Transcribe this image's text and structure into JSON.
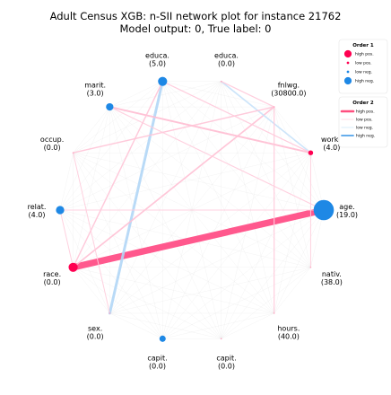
{
  "chart_data": {
    "type": "network",
    "title": "Adult Census XGB: n-SII network plot for instance 21762",
    "subtitle": "Model output: 0, True label: 0",
    "colors": {
      "high_pos": "#ff0051",
      "low_pos": "#ffc2d1",
      "low_neg": "#c4e2f7",
      "high_neg": "#1e88e5",
      "background_edge": "#dddddd"
    },
    "features": [
      {
        "id": "age",
        "name": "age.",
        "value": "(19.0)",
        "order1": -0.3
      },
      {
        "id": "workc",
        "name": "workc",
        "value": "(4.0)",
        "order1": 0.01
      },
      {
        "id": "fnlwg",
        "name": "fnlwg.",
        "value": "(30800.0)",
        "order1": 0.0
      },
      {
        "id": "educa1",
        "name": "educa.",
        "value": "(0.0)",
        "order1": 0.0
      },
      {
        "id": "educa2",
        "name": "educa.",
        "value": "(5.0)",
        "order1": -0.05
      },
      {
        "id": "marit",
        "name": "marit.",
        "value": "(3.0)",
        "order1": -0.03
      },
      {
        "id": "occup",
        "name": "occup.",
        "value": "(0.0)",
        "order1": 0.0
      },
      {
        "id": "relat",
        "name": "relat.",
        "value": "(4.0)",
        "order1": -0.04
      },
      {
        "id": "race",
        "name": "race.",
        "value": "(0.0)",
        "order1": 0.05
      },
      {
        "id": "sex",
        "name": "sex.",
        "value": "(0.0)",
        "order1": 0.0
      },
      {
        "id": "capit1",
        "name": "capit.",
        "value": "(0.0)",
        "order1": -0.02
      },
      {
        "id": "capit2",
        "name": "capit.",
        "value": "(0.0)",
        "order1": 0.0
      },
      {
        "id": "hours",
        "name": "hours.",
        "value": "(40.0)",
        "order1": 0.0
      },
      {
        "id": "nativ",
        "name": "nativ.",
        "value": "(38.0)",
        "order1": 0.0
      }
    ],
    "interactions": [
      {
        "source": "race",
        "target": "age",
        "value": 0.3
      },
      {
        "source": "educa2",
        "target": "sex",
        "value": -0.1
      },
      {
        "source": "marit",
        "target": "workc",
        "value": 0.05
      },
      {
        "source": "race",
        "target": "fnlwg",
        "value": 0.04
      },
      {
        "source": "educa2",
        "target": "race",
        "value": 0.03
      },
      {
        "source": "educa1",
        "target": "workc",
        "value": -0.04
      },
      {
        "source": "educa1",
        "target": "fnlwg",
        "value": 0.02
      },
      {
        "source": "occup",
        "target": "fnlwg",
        "value": 0.03
      },
      {
        "source": "fnlwg",
        "target": "hours",
        "value": 0.02
      },
      {
        "source": "educa2",
        "target": "workc",
        "value": 0.02
      },
      {
        "source": "sex",
        "target": "occup",
        "value": 0.01
      },
      {
        "source": "relat",
        "target": "race",
        "value": 0.01
      },
      {
        "source": "workc",
        "target": "nativ",
        "value": 0.01
      },
      {
        "source": "marit",
        "target": "age",
        "value": 0.015
      },
      {
        "source": "relat",
        "target": "age",
        "value": 0.01
      }
    ],
    "legend_placement": "right",
    "legend": {
      "order1": {
        "title": "Order 1",
        "items": [
          {
            "label": "high pos.",
            "color": "#ff0051",
            "magnitude": 1.0
          },
          {
            "label": "low pos.",
            "color": "#ff0051",
            "magnitude": 0.15
          },
          {
            "label": "low neg.",
            "color": "#1e88e5",
            "magnitude": 0.15
          },
          {
            "label": "high neg.",
            "color": "#1e88e5",
            "magnitude": 1.0
          }
        ]
      },
      "order2": {
        "title": "Order 2",
        "items": [
          {
            "label": "high pos.",
            "color": "#ff4f7f"
          },
          {
            "label": "low pos.",
            "color": "#ffe3ea"
          },
          {
            "label": "low neg.",
            "color": "#e1f0fb"
          },
          {
            "label": "high neg.",
            "color": "#52a3ea"
          }
        ]
      }
    }
  }
}
